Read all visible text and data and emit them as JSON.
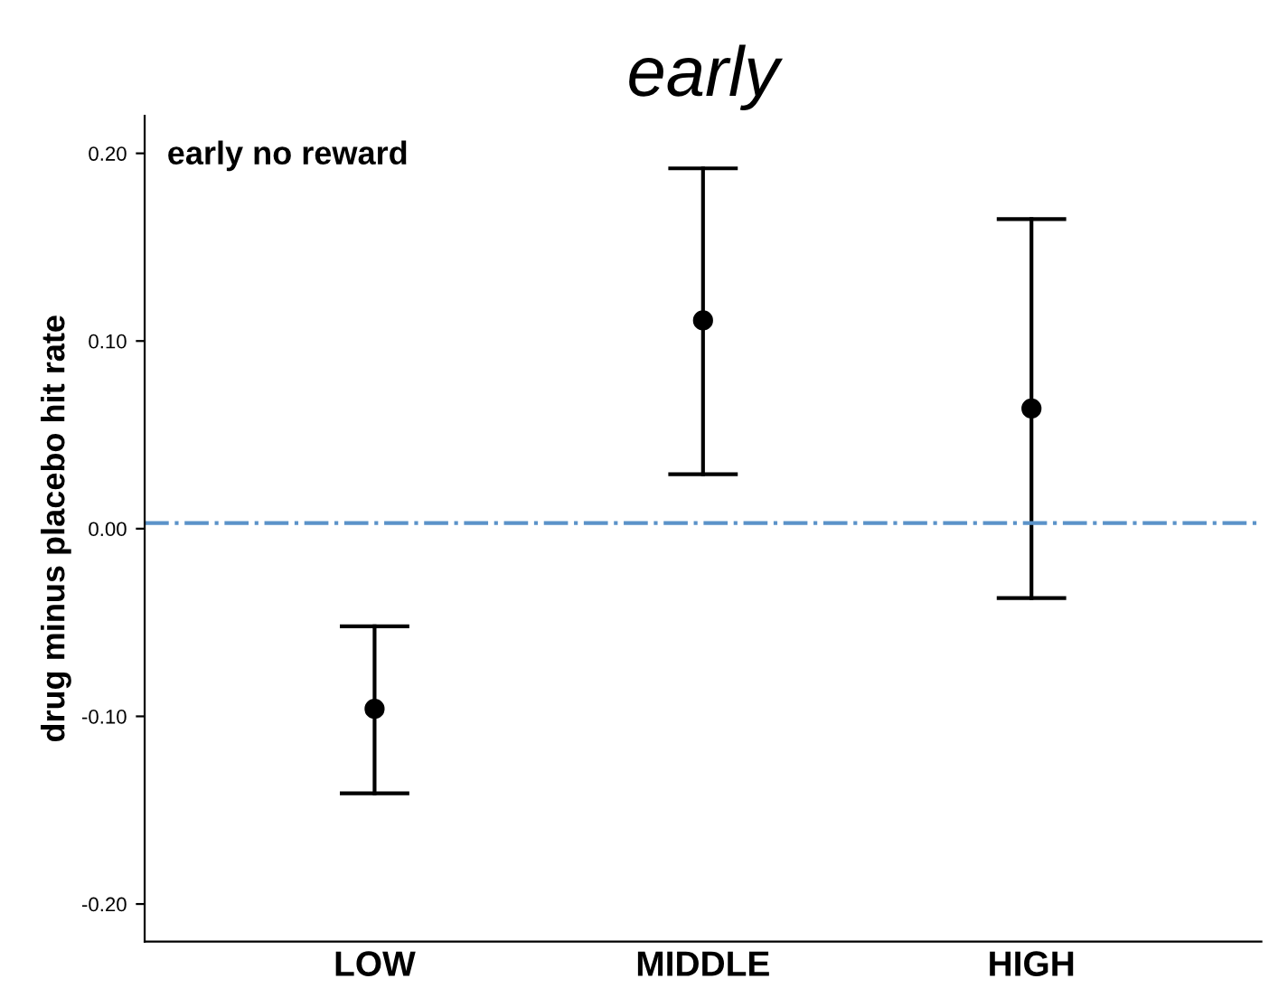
{
  "chart_data": {
    "type": "scatter",
    "title": "early",
    "ylabel": "drug minus placebo hit rate",
    "categories": [
      "LOW",
      "MIDDLE",
      "HIGH"
    ],
    "series": [
      {
        "color": "#000000",
        "values": [
          -0.096,
          0.111,
          0.064
        ],
        "errors": [
          [
            -0.141,
            -0.052
          ],
          [
            0.029,
            0.192
          ],
          [
            -0.037,
            0.165
          ]
        ]
      }
    ],
    "marker": "circle",
    "ylim": [
      -0.22,
      0.22
    ],
    "yticks": [
      {
        "value": -0.2,
        "label": "-0.20"
      },
      {
        "value": -0.1,
        "label": "-0.10"
      },
      {
        "value": 0.0,
        "label": "0.00"
      },
      {
        "value": 0.1,
        "label": "0.10"
      },
      {
        "value": 0.2,
        "label": "0.20"
      }
    ],
    "ref_lines": [
      {
        "axis": "y",
        "value": 0.003,
        "color": "#5b93c9",
        "line_style": "dashdot"
      }
    ],
    "annotations": [
      "early no reward"
    ],
    "grid": false,
    "legend": false
  }
}
